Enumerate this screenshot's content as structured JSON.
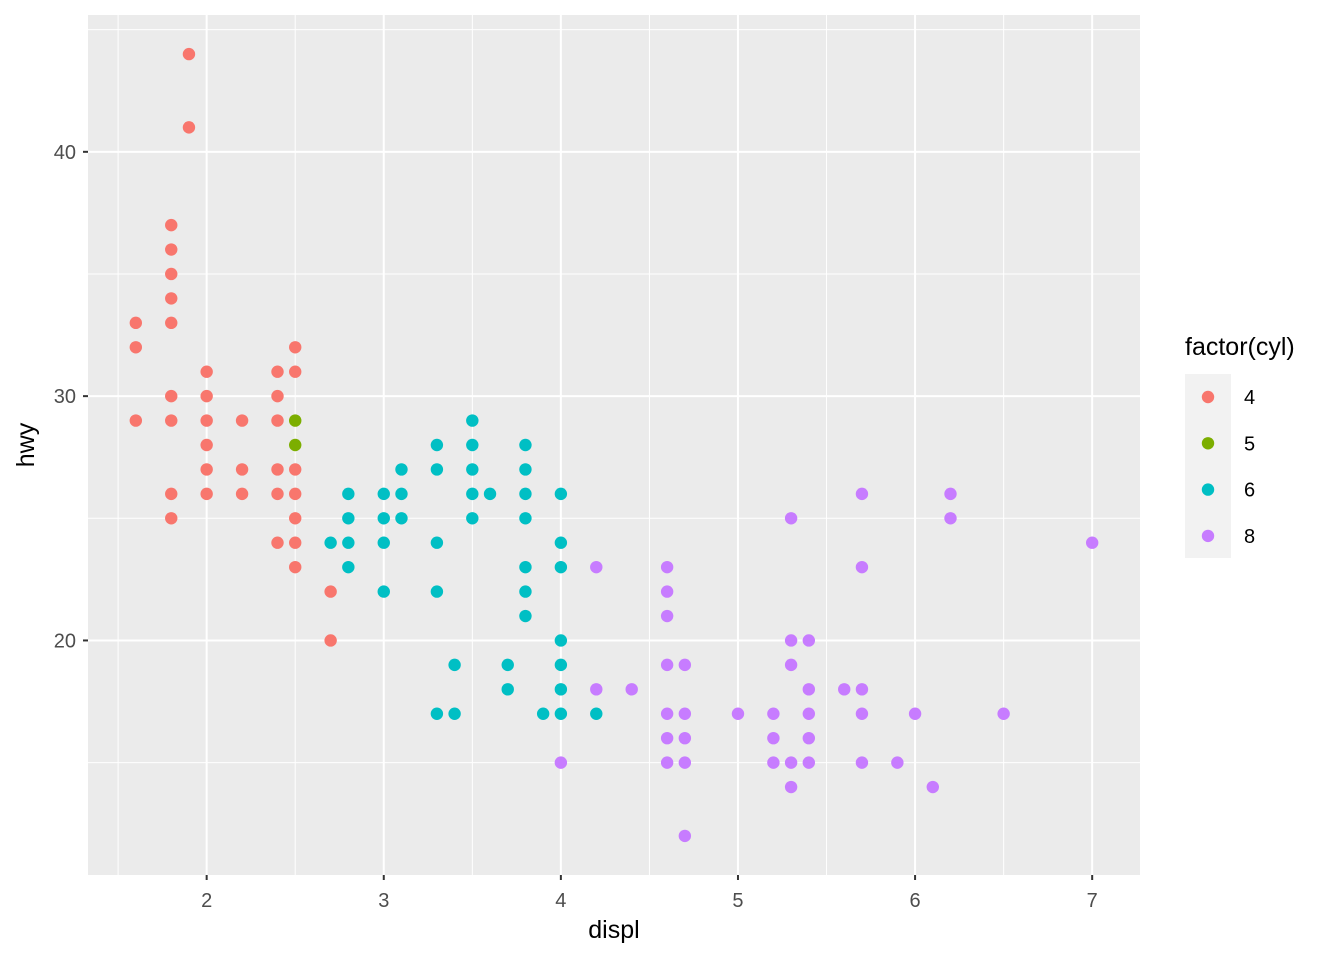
{
  "chart_data": {
    "type": "scatter",
    "title": "",
    "xlabel": "displ",
    "ylabel": "hwy",
    "xlim": [
      1.33,
      7.27
    ],
    "ylim": [
      10.4,
      45.6
    ],
    "x_ticks": [
      2,
      3,
      4,
      5,
      6,
      7
    ],
    "y_ticks": [
      20,
      30,
      40
    ],
    "x_tick_labels": [
      "2",
      "3",
      "4",
      "5",
      "6",
      "7"
    ],
    "y_tick_labels": [
      "20",
      "30",
      "40"
    ],
    "grid": true,
    "legend": {
      "title": "factor(cyl)",
      "placement": "right",
      "entries": [
        {
          "label": "4",
          "color": "#F8766D"
        },
        {
          "label": "5",
          "color": "#7CAE00"
        },
        {
          "label": "6",
          "color": "#00BFC4"
        },
        {
          "label": "8",
          "color": "#C77CFF"
        }
      ]
    },
    "series": [
      {
        "name": "4",
        "color": "#F8766D",
        "points": [
          [
            1.6,
            33
          ],
          [
            1.6,
            32
          ],
          [
            1.6,
            29
          ],
          [
            1.8,
            29
          ],
          [
            1.8,
            26
          ],
          [
            1.8,
            25
          ],
          [
            1.8,
            30
          ],
          [
            1.8,
            33
          ],
          [
            1.8,
            34
          ],
          [
            1.8,
            35
          ],
          [
            1.8,
            36
          ],
          [
            1.8,
            37
          ],
          [
            1.9,
            44
          ],
          [
            1.9,
            41
          ],
          [
            2.0,
            31
          ],
          [
            2.0,
            30
          ],
          [
            2.0,
            29
          ],
          [
            2.0,
            28
          ],
          [
            2.0,
            27
          ],
          [
            2.0,
            26
          ],
          [
            2.2,
            29
          ],
          [
            2.2,
            27
          ],
          [
            2.2,
            26
          ],
          [
            2.4,
            31
          ],
          [
            2.4,
            30
          ],
          [
            2.4,
            29
          ],
          [
            2.4,
            27
          ],
          [
            2.4,
            26
          ],
          [
            2.4,
            24
          ],
          [
            2.5,
            32
          ],
          [
            2.5,
            31
          ],
          [
            2.5,
            27
          ],
          [
            2.5,
            26
          ],
          [
            2.5,
            25
          ],
          [
            2.5,
            24
          ],
          [
            2.5,
            23
          ],
          [
            2.7,
            22
          ],
          [
            2.7,
            20
          ]
        ]
      },
      {
        "name": "5",
        "color": "#7CAE00",
        "points": [
          [
            2.5,
            29
          ],
          [
            2.5,
            28
          ]
        ]
      },
      {
        "name": "6",
        "color": "#00BFC4",
        "points": [
          [
            2.7,
            24
          ],
          [
            2.8,
            26
          ],
          [
            2.8,
            25
          ],
          [
            2.8,
            24
          ],
          [
            2.8,
            23
          ],
          [
            3.0,
            26
          ],
          [
            3.0,
            25
          ],
          [
            3.0,
            24
          ],
          [
            3.0,
            22
          ],
          [
            3.1,
            27
          ],
          [
            3.1,
            26
          ],
          [
            3.1,
            25
          ],
          [
            3.3,
            28
          ],
          [
            3.3,
            27
          ],
          [
            3.3,
            24
          ],
          [
            3.3,
            22
          ],
          [
            3.3,
            17
          ],
          [
            3.4,
            19
          ],
          [
            3.4,
            17
          ],
          [
            3.5,
            29
          ],
          [
            3.5,
            28
          ],
          [
            3.5,
            27
          ],
          [
            3.5,
            26
          ],
          [
            3.5,
            25
          ],
          [
            3.6,
            26
          ],
          [
            3.7,
            19
          ],
          [
            3.7,
            18
          ],
          [
            3.8,
            28
          ],
          [
            3.8,
            27
          ],
          [
            3.8,
            26
          ],
          [
            3.8,
            25
          ],
          [
            3.8,
            23
          ],
          [
            3.8,
            22
          ],
          [
            3.8,
            21
          ],
          [
            3.9,
            17
          ],
          [
            4.0,
            26
          ],
          [
            4.0,
            24
          ],
          [
            4.0,
            23
          ],
          [
            4.0,
            20
          ],
          [
            4.0,
            19
          ],
          [
            4.0,
            18
          ],
          [
            4.0,
            17
          ],
          [
            4.2,
            17
          ]
        ]
      },
      {
        "name": "8",
        "color": "#C77CFF",
        "points": [
          [
            4.0,
            15
          ],
          [
            4.2,
            23
          ],
          [
            4.2,
            18
          ],
          [
            4.4,
            18
          ],
          [
            4.6,
            23
          ],
          [
            4.6,
            22
          ],
          [
            4.6,
            21
          ],
          [
            4.6,
            19
          ],
          [
            4.6,
            17
          ],
          [
            4.6,
            16
          ],
          [
            4.6,
            15
          ],
          [
            4.7,
            19
          ],
          [
            4.7,
            17
          ],
          [
            4.7,
            16
          ],
          [
            4.7,
            15
          ],
          [
            4.7,
            12
          ],
          [
            5.0,
            17
          ],
          [
            5.2,
            17
          ],
          [
            5.2,
            16
          ],
          [
            5.2,
            15
          ],
          [
            5.3,
            25
          ],
          [
            5.3,
            20
          ],
          [
            5.3,
            19
          ],
          [
            5.3,
            15
          ],
          [
            5.3,
            14
          ],
          [
            5.4,
            20
          ],
          [
            5.4,
            18
          ],
          [
            5.4,
            17
          ],
          [
            5.4,
            16
          ],
          [
            5.4,
            15
          ],
          [
            5.6,
            18
          ],
          [
            5.7,
            26
          ],
          [
            5.7,
            23
          ],
          [
            5.7,
            18
          ],
          [
            5.7,
            17
          ],
          [
            5.7,
            15
          ],
          [
            5.9,
            15
          ],
          [
            6.0,
            17
          ],
          [
            6.1,
            14
          ],
          [
            6.2,
            26
          ],
          [
            6.2,
            25
          ],
          [
            6.5,
            17
          ],
          [
            7.0,
            24
          ]
        ]
      }
    ]
  }
}
